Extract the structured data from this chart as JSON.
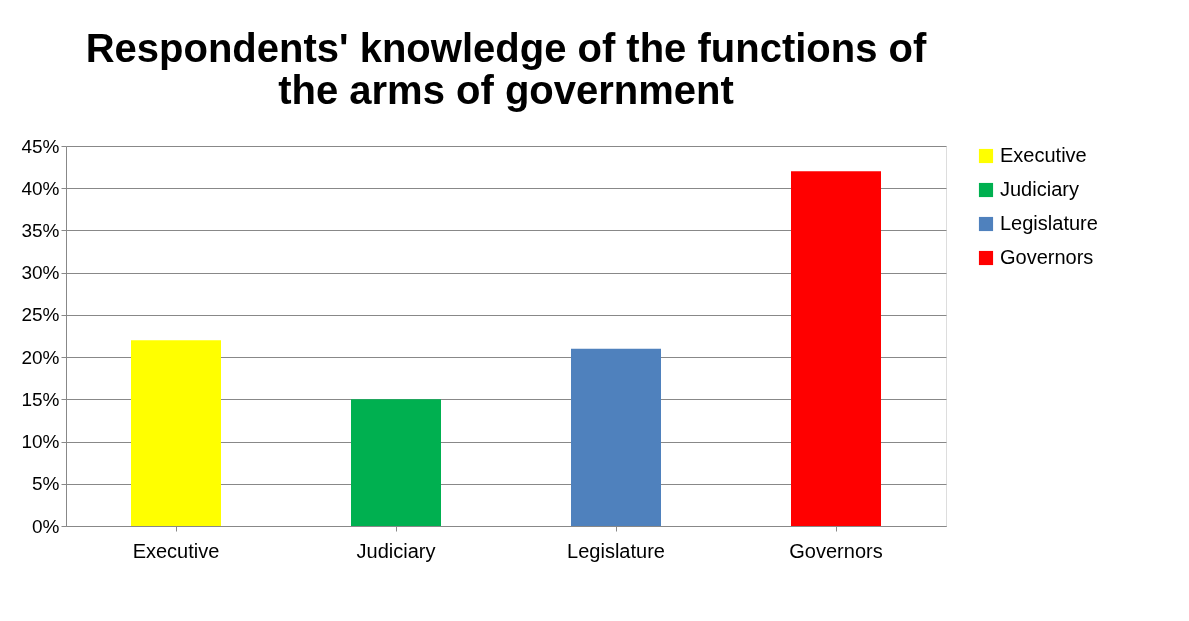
{
  "chart_data": {
    "type": "bar",
    "title": "Respondents' knowledge of the functions of the arms of government",
    "categories": [
      "Executive",
      "Judiciary",
      "Legislature",
      "Governors"
    ],
    "series": [
      {
        "name": "Executive",
        "color": "#ffff00",
        "values": [
          22,
          null,
          null,
          null
        ]
      },
      {
        "name": "Judiciary",
        "color": "#00b050",
        "values": [
          null,
          15,
          null,
          null
        ]
      },
      {
        "name": "Legislature",
        "color": "#4f81bd",
        "values": [
          null,
          null,
          21,
          null
        ]
      },
      {
        "name": "Governors",
        "color": "#ff0000",
        "values": [
          null,
          null,
          null,
          42
        ]
      }
    ],
    "ylim": [
      0,
      45
    ],
    "yticks": [
      {
        "value": 0,
        "label": "0%"
      },
      {
        "value": 5,
        "label": "5%"
      },
      {
        "value": 10,
        "label": "10%"
      },
      {
        "value": 15,
        "label": "15%"
      },
      {
        "value": 20,
        "label": "20%"
      },
      {
        "value": 25,
        "label": "25%"
      },
      {
        "value": 30,
        "label": "30%"
      },
      {
        "value": 35,
        "label": "35%"
      },
      {
        "value": 40,
        "label": "40%"
      },
      {
        "value": 45,
        "label": "45%"
      }
    ],
    "grid": "y",
    "legend": "right"
  }
}
